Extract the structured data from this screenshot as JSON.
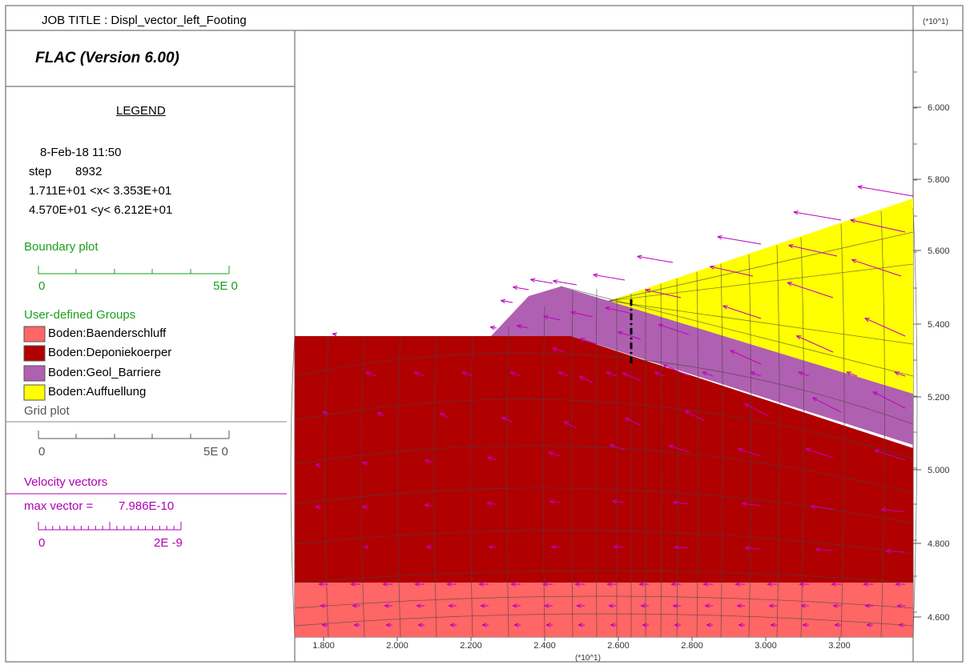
{
  "header": {
    "job_title": "JOB TITLE : Displ_vector_left_Footing",
    "version": "FLAC (Version 6.00)",
    "axis_multiplier_right": "(*10^1)",
    "axis_multiplier_bottom": "(*10^1)"
  },
  "legend": {
    "title": "LEGEND",
    "date": "8-Feb-18  11:50",
    "step_label": "step",
    "step_value": "8932",
    "x_range": "1.711E+01 <x<  3.353E+01",
    "y_range": "4.570E+01 <y<  6.212E+01",
    "boundary_plot": {
      "label": "Boundary plot",
      "min": "0",
      "max": "5E  0"
    },
    "groups_label": "User-defined Groups",
    "groups": [
      {
        "name": "Boden:Baenderschluff",
        "color": "#ff6666"
      },
      {
        "name": "Boden:Deponiekoerper",
        "color": "#b00000"
      },
      {
        "name": "Boden:Geol_Barriere",
        "color": "#b060b0"
      },
      {
        "name": "Boden:Auffuellung",
        "color": "#ffff00"
      }
    ],
    "grid_plot": {
      "label": "Grid plot",
      "min": "0",
      "max": "5E  0"
    },
    "velocity": {
      "label": "Velocity vectors",
      "max_label": "max vector =",
      "max_value": "7.986E-10",
      "min": "0",
      "max": "2E -9"
    }
  },
  "axes": {
    "x_ticks": [
      "1.800",
      "2.000",
      "2.200",
      "2.400",
      "2.600",
      "2.800",
      "3.000",
      "3.200"
    ],
    "y_ticks": [
      "6.000",
      "5.800",
      "5.600",
      "5.400",
      "5.200",
      "5.000",
      "4.800",
      "4.600"
    ]
  },
  "colors": {
    "vector": "#c000c0",
    "grid_line": "#444444"
  }
}
